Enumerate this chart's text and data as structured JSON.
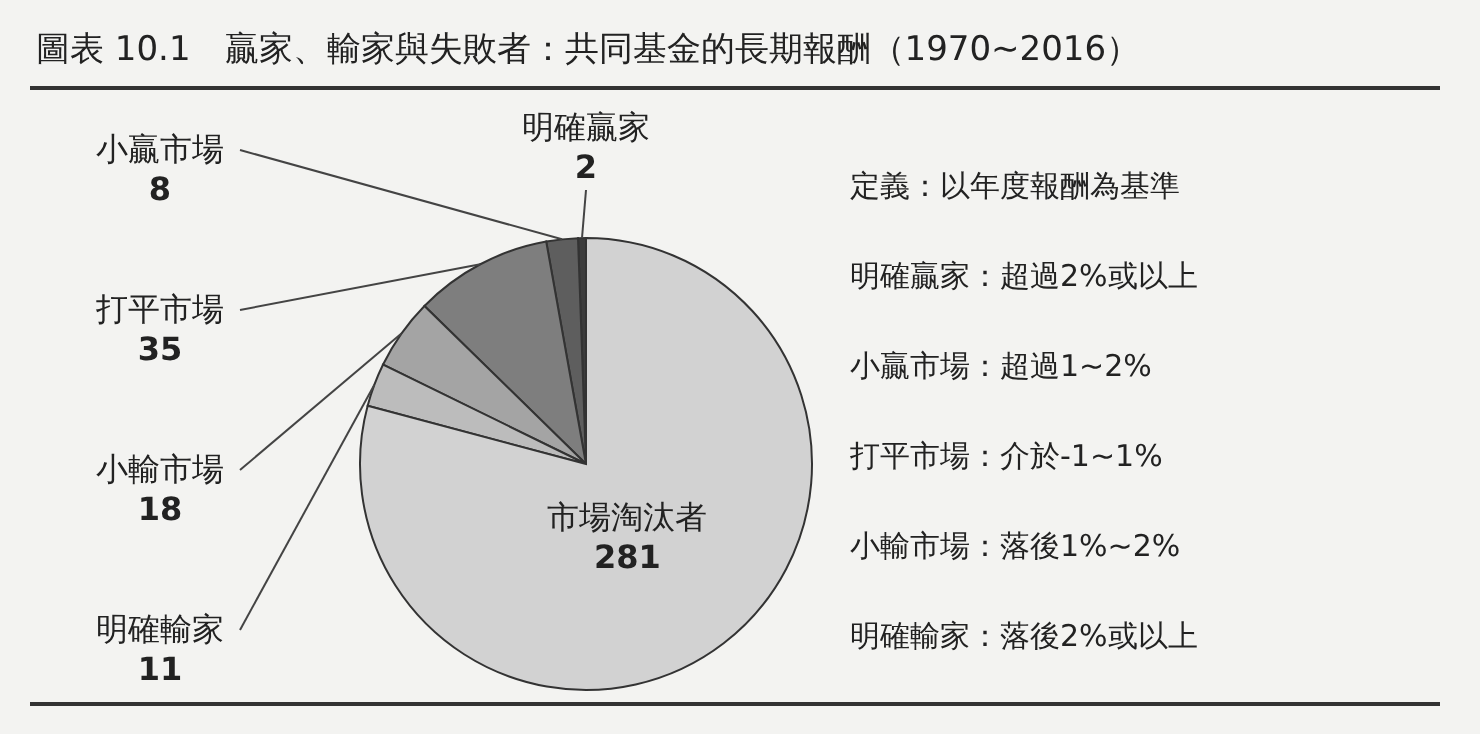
{
  "chart_data": {
    "type": "pie",
    "title": "圖表 10.1　贏家、輸家與失敗者：共同基金的長期報酬（1970~2016）",
    "categories": [
      "明確贏家",
      "小贏市場",
      "打平市場",
      "小輸市場",
      "明確輸家",
      "市場淘汰者"
    ],
    "values": [
      2,
      8,
      35,
      18,
      11,
      281
    ],
    "colors": [
      "#3c3c3c",
      "#5e5e5e",
      "#7e7e7e",
      "#a4a4a4",
      "#bcbcbc",
      "#d2d2d2"
    ],
    "data_labels": true,
    "annotations": [
      "定義：以年度報酬為基準",
      "明確贏家：超過2%或以上",
      "小贏市場：超過1~2%",
      "打平市場：介於-1~1%",
      "小輸市場：落後1%~2%",
      "明確輸家：落後2%或以上"
    ]
  }
}
